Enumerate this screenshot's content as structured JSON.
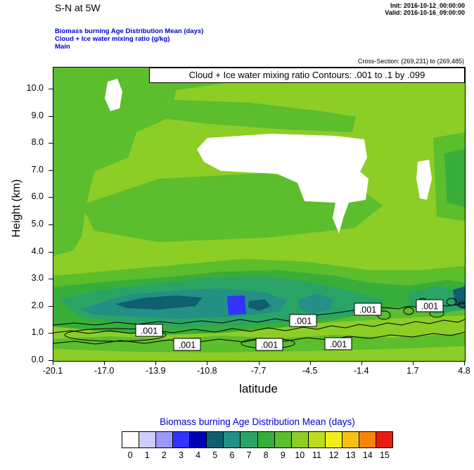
{
  "header": {
    "title": "S-N at 5W",
    "init": "Init: 2016-10-12_00:00:00",
    "valid": "Valid: 2016-10-16_09:00:00",
    "legend_line1": "Biomass burning Age Distribution Mean   (days)",
    "legend_line2": "Cloud + Ice water mixing ratio   (g/kg)",
    "legend_line3": "Main",
    "cross_section": "Cross-Section: (269,231) to (269,485)"
  },
  "chart_data": {
    "type": "heatmap",
    "title_box": "Cloud + Ice water mixing ratio Contours: .001 to .1 by .099",
    "xlabel": "latitude",
    "ylabel": "Height (km)",
    "xlim": [
      -20.1,
      4.8
    ],
    "ylim": [
      0,
      10.8
    ],
    "x_tick_labels": [
      "-20.1",
      "-17.0",
      "-13.9",
      "-10.8",
      "-7.7",
      "-4.5",
      "-1.4",
      "1.7",
      "4.8"
    ],
    "y_tick_labels": [
      "0.0",
      "1.0",
      "2.0",
      "3.0",
      "4.0",
      "5.0",
      "6.0",
      "7.0",
      "8.0",
      "9.0",
      "10.0"
    ],
    "contour_label": ".001",
    "contour_levels": ".001 to .1 by .099",
    "background_color": 10,
    "colorbar": {
      "title": "Biomass burning Age Distribution Mean  (days)",
      "tick_labels": [
        "0",
        "1",
        "2",
        "3",
        "4",
        "5",
        "6",
        "7",
        "8",
        "9",
        "10",
        "11",
        "12",
        "13",
        "14",
        "15"
      ],
      "colors": [
        "#ffffff",
        "#ccccff",
        "#9a99f5",
        "#3333ff",
        "#0000b4",
        "#0f5f70",
        "#238f85",
        "#2aa465",
        "#39ad39",
        "#5cbd2d",
        "#8ccd26",
        "#bcdc1e",
        "#f2ee19",
        "#f6c113",
        "#f5840e",
        "#e51f10"
      ]
    },
    "field_regions": [
      {
        "name": "upper-left-medium-green",
        "c": 9,
        "pts": [
          [
            0,
            0
          ],
          [
            258,
            0
          ],
          [
            244,
            22
          ],
          [
            175,
            32
          ],
          [
            163,
            72
          ],
          [
            118,
            92
          ],
          [
            106,
            128
          ],
          [
            58,
            148
          ],
          [
            46,
            198
          ],
          [
            0,
            208
          ]
        ]
      },
      {
        "name": "top-strip",
        "c": 9,
        "pts": [
          [
            244,
            0
          ],
          [
            420,
            0
          ],
          [
            420,
            10
          ],
          [
            250,
            16
          ]
        ]
      },
      {
        "name": "upper-band",
        "c": 9,
        "pts": [
          [
            150,
            45
          ],
          [
            280,
            50
          ],
          [
            380,
            62
          ],
          [
            430,
            70
          ],
          [
            425,
            92
          ],
          [
            330,
            88
          ],
          [
            220,
            80
          ],
          [
            155,
            72
          ]
        ]
      },
      {
        "name": "left-column",
        "c": 9,
        "pts": [
          [
            0,
            208
          ],
          [
            46,
            198
          ],
          [
            40,
            240
          ],
          [
            28,
            260
          ],
          [
            0,
            268
          ]
        ]
      },
      {
        "name": "mid-band",
        "c": 9,
        "pts": [
          [
            40,
            195
          ],
          [
            150,
            158
          ],
          [
            300,
            150
          ],
          [
            430,
            168
          ],
          [
            468,
            196
          ],
          [
            428,
            228
          ],
          [
            300,
            242
          ],
          [
            150,
            248
          ],
          [
            58,
            232
          ]
        ]
      },
      {
        "name": "right-column",
        "c": 9,
        "pts": [
          [
            540,
            100
          ],
          [
            585,
            92
          ],
          [
            585,
            218
          ],
          [
            545,
            212
          ]
        ]
      },
      {
        "name": "right-column-core",
        "c": 8,
        "pts": [
          [
            556,
            122
          ],
          [
            585,
            116
          ],
          [
            585,
            198
          ],
          [
            560,
            192
          ]
        ]
      },
      {
        "name": "low-band-9",
        "c": 9,
        "pts": [
          [
            0,
            296
          ],
          [
            90,
            288
          ],
          [
            180,
            280
          ],
          [
            270,
            272
          ],
          [
            360,
            276
          ],
          [
            450,
            288
          ],
          [
            520,
            288
          ],
          [
            585,
            282
          ],
          [
            585,
            352
          ],
          [
            500,
            356
          ],
          [
            400,
            362
          ],
          [
            300,
            370
          ],
          [
            200,
            374
          ],
          [
            100,
            372
          ],
          [
            0,
            362
          ]
        ]
      },
      {
        "name": "low-band-8",
        "c": 8,
        "pts": [
          [
            0,
            312
          ],
          [
            80,
            304
          ],
          [
            160,
            298
          ],
          [
            240,
            290
          ],
          [
            320,
            288
          ],
          [
            400,
            296
          ],
          [
            450,
            306
          ],
          [
            505,
            310
          ],
          [
            560,
            302
          ],
          [
            585,
            306
          ],
          [
            585,
            338
          ],
          [
            540,
            344
          ],
          [
            495,
            340
          ],
          [
            445,
            350
          ],
          [
            395,
            360
          ],
          [
            320,
            370
          ],
          [
            240,
            377
          ],
          [
            160,
            380
          ],
          [
            80,
            376
          ],
          [
            0,
            368
          ]
        ]
      },
      {
        "name": "band-7",
        "c": 7,
        "pts": [
          [
            8,
            330
          ],
          [
            60,
            317
          ],
          [
            140,
            308
          ],
          [
            220,
            299
          ],
          [
            300,
            297
          ],
          [
            360,
            304
          ],
          [
            420,
            317
          ],
          [
            468,
            330
          ],
          [
            466,
            344
          ],
          [
            418,
            354
          ],
          [
            340,
            361
          ],
          [
            260,
            367
          ],
          [
            180,
            369
          ],
          [
            100,
            364
          ],
          [
            38,
            354
          ]
        ]
      },
      {
        "name": "band-7-right",
        "c": 7,
        "pts": [
          [
            502,
            320
          ],
          [
            542,
            312
          ],
          [
            585,
            316
          ],
          [
            585,
            344
          ],
          [
            544,
            350
          ],
          [
            508,
            338
          ]
        ]
      },
      {
        "name": "band-6",
        "c": 6,
        "pts": [
          [
            38,
            344
          ],
          [
            100,
            324
          ],
          [
            170,
            317
          ],
          [
            240,
            314
          ],
          [
            300,
            319
          ],
          [
            332,
            331
          ],
          [
            320,
            347
          ],
          [
            260,
            354
          ],
          [
            180,
            357
          ],
          [
            108,
            354
          ],
          [
            58,
            351
          ]
        ]
      },
      {
        "name": "band-6-spot",
        "c": 6,
        "pts": [
          [
            348,
            330
          ],
          [
            374,
            321
          ],
          [
            398,
            329
          ],
          [
            394,
            344
          ],
          [
            368,
            350
          ],
          [
            350,
            343
          ]
        ]
      },
      {
        "name": "band-5a",
        "c": 5,
        "pts": [
          [
            88,
            336
          ],
          [
            130,
            327
          ],
          [
            175,
            324
          ],
          [
            212,
            327
          ],
          [
            202,
            339
          ],
          [
            150,
            344
          ],
          [
            104,
            342
          ]
        ]
      },
      {
        "name": "band-5b",
        "c": 5,
        "pts": [
          [
            278,
            332
          ],
          [
            300,
            329
          ],
          [
            309,
            339
          ],
          [
            293,
            346
          ],
          [
            277,
            341
          ]
        ]
      },
      {
        "name": "right-edge-teal",
        "c": 5,
        "pts": [
          [
            568,
            316
          ],
          [
            585,
            311
          ],
          [
            585,
            344
          ],
          [
            571,
            338
          ]
        ]
      },
      {
        "name": "blue-spot",
        "c": 3,
        "pts": [
          [
            247,
            325
          ],
          [
            272,
            324
          ],
          [
            274,
            350
          ],
          [
            249,
            352
          ]
        ]
      },
      {
        "name": "bottom-band-9",
        "c": 9,
        "pts": [
          [
            0,
            386
          ],
          [
            80,
            382
          ],
          [
            160,
            386
          ],
          [
            240,
            381
          ],
          [
            320,
            385
          ],
          [
            400,
            380
          ],
          [
            480,
            384
          ],
          [
            585,
            378
          ],
          [
            585,
            396
          ],
          [
            480,
            400
          ],
          [
            360,
            403
          ],
          [
            240,
            405
          ],
          [
            120,
            404
          ],
          [
            0,
            400
          ]
        ]
      },
      {
        "name": "white-top-left",
        "c": 0,
        "pts": [
          [
            77,
            20
          ],
          [
            91,
            16
          ],
          [
            98,
            34
          ],
          [
            94,
            58
          ],
          [
            81,
            62
          ],
          [
            73,
            44
          ]
        ]
      },
      {
        "name": "white-main",
        "c": 0,
        "pts": [
          [
            204,
            116
          ],
          [
            219,
            100
          ],
          [
            310,
            94
          ],
          [
            400,
            97
          ],
          [
            442,
            102
          ],
          [
            446,
            128
          ],
          [
            436,
            148
          ],
          [
            448,
            158
          ],
          [
            444,
            188
          ],
          [
            420,
            192
          ],
          [
            412,
            214
          ],
          [
            406,
            236
          ],
          [
            397,
            214
          ],
          [
            401,
            192
          ],
          [
            357,
            190
          ],
          [
            347,
            164
          ],
          [
            318,
            151
          ],
          [
            278,
            149
          ],
          [
            238,
            147
          ],
          [
            214,
            134
          ]
        ]
      },
      {
        "name": "white-right",
        "c": 0,
        "pts": [
          [
            518,
            134
          ],
          [
            534,
            131
          ],
          [
            538,
            158
          ],
          [
            531,
            188
          ],
          [
            521,
            186
          ],
          [
            516,
            158
          ]
        ]
      }
    ],
    "contour_lines": [
      [
        [
          0,
          366
        ],
        [
          30,
          363
        ],
        [
          60,
          366
        ],
        [
          90,
          362
        ],
        [
          120,
          365
        ],
        [
          150,
          361
        ],
        [
          180,
          364
        ],
        [
          210,
          360
        ],
        [
          240,
          363
        ],
        [
          265,
          358
        ],
        [
          290,
          362
        ],
        [
          315,
          357
        ],
        [
          340,
          361
        ],
        [
          360,
          355
        ],
        [
          380,
          351
        ],
        [
          400,
          349
        ],
        [
          420,
          346
        ],
        [
          440,
          343
        ],
        [
          455,
          345
        ],
        [
          470,
          341
        ],
        [
          490,
          343
        ],
        [
          505,
          339
        ],
        [
          520,
          341
        ],
        [
          540,
          337
        ],
        [
          560,
          339
        ],
        [
          585,
          335
        ]
      ],
      [
        [
          0,
          377
        ],
        [
          25,
          374
        ],
        [
          50,
          378
        ],
        [
          80,
          374
        ],
        [
          110,
          378
        ],
        [
          140,
          373
        ],
        [
          170,
          377
        ],
        [
          200,
          372
        ],
        [
          230,
          376
        ],
        [
          255,
          371
        ],
        [
          280,
          375
        ],
        [
          305,
          370
        ],
        [
          330,
          374
        ],
        [
          355,
          369
        ],
        [
          375,
          372
        ],
        [
          395,
          367
        ],
        [
          415,
          370
        ],
        [
          435,
          365
        ],
        [
          455,
          368
        ],
        [
          475,
          363
        ],
        [
          495,
          366
        ],
        [
          515,
          361
        ],
        [
          535,
          364
        ],
        [
          555,
          359
        ],
        [
          575,
          362
        ],
        [
          585,
          358
        ]
      ],
      [
        [
          0,
          392
        ],
        [
          30,
          389
        ],
        [
          60,
          393
        ],
        [
          95,
          388
        ],
        [
          130,
          392
        ],
        [
          165,
          387
        ],
        [
          200,
          391
        ],
        [
          235,
          386
        ],
        [
          270,
          390
        ],
        [
          300,
          385
        ],
        [
          330,
          389
        ],
        [
          360,
          384
        ],
        [
          390,
          387
        ],
        [
          420,
          382
        ],
        [
          450,
          385
        ],
        [
          480,
          380
        ],
        [
          510,
          383
        ],
        [
          540,
          378
        ],
        [
          565,
          381
        ],
        [
          585,
          376
        ]
      ]
    ],
    "contour_loops": [
      [
        88,
        380,
        72,
        9
      ],
      [
        305,
        392,
        38,
        7
      ],
      [
        470,
        352,
        9,
        6
      ],
      [
        505,
        346,
        7,
        5
      ],
      [
        545,
        349,
        10,
        6
      ],
      [
        566,
        333,
        7,
        5
      ],
      [
        581,
        337,
        5,
        4
      ],
      [
        525,
        332,
        6,
        4
      ]
    ],
    "contour_label_positions": [
      [
        136,
        374
      ],
      [
        190,
        394
      ],
      [
        307,
        394
      ],
      [
        355,
        360
      ],
      [
        405,
        393
      ],
      [
        447,
        344
      ],
      [
        535,
        339
      ]
    ]
  },
  "colors": {
    "accent_blue": "#0000cd"
  }
}
